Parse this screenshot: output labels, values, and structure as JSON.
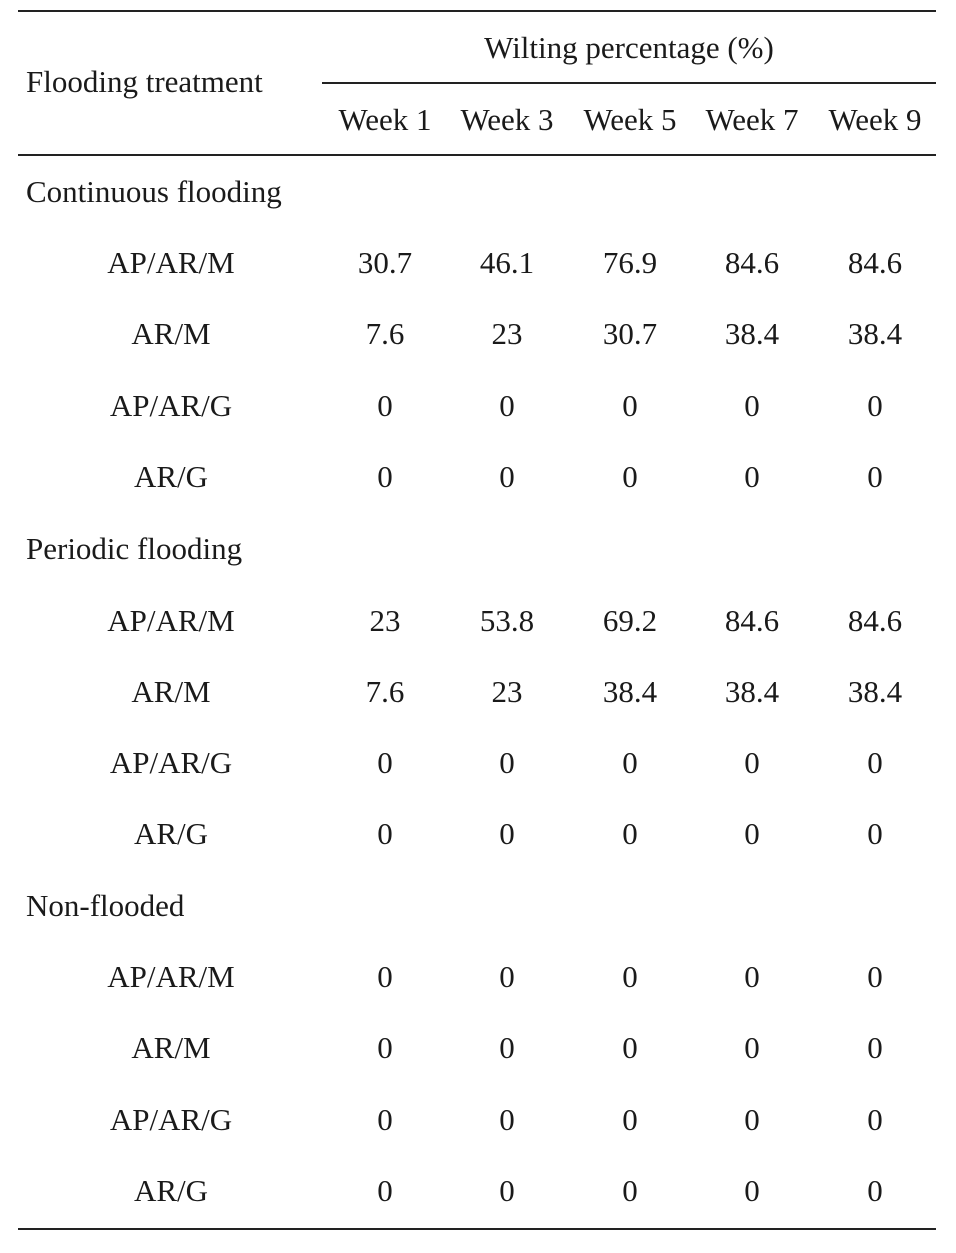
{
  "table": {
    "row_header": "Flooding treatment",
    "group_header": "Wilting percentage (%)",
    "columns": [
      "Week 1",
      "Week 3",
      "Week 5",
      "Week 7",
      "Week 9"
    ],
    "sections": [
      {
        "title": "Continuous flooding",
        "rows": [
          {
            "label": "AP/AR/M",
            "values": [
              "30.7",
              "46.1",
              "76.9",
              "84.6",
              "84.6"
            ]
          },
          {
            "label": "AR/M",
            "values": [
              "7.6",
              "23",
              "30.7",
              "38.4",
              "38.4"
            ]
          },
          {
            "label": "AP/AR/G",
            "values": [
              "0",
              "0",
              "0",
              "0",
              "0"
            ]
          },
          {
            "label": "AR/G",
            "values": [
              "0",
              "0",
              "0",
              "0",
              "0"
            ]
          }
        ]
      },
      {
        "title": "Periodic flooding",
        "rows": [
          {
            "label": "AP/AR/M",
            "values": [
              "23",
              "53.8",
              "69.2",
              "84.6",
              "84.6"
            ]
          },
          {
            "label": "AR/M",
            "values": [
              "7.6",
              "23",
              "38.4",
              "38.4",
              "38.4"
            ]
          },
          {
            "label": "AP/AR/G",
            "values": [
              "0",
              "0",
              "0",
              "0",
              "0"
            ]
          },
          {
            "label": "AR/G",
            "values": [
              "0",
              "0",
              "0",
              "0",
              "0"
            ]
          }
        ]
      },
      {
        "title": "Non-flooded",
        "rows": [
          {
            "label": "AP/AR/M",
            "values": [
              "0",
              "0",
              "0",
              "0",
              "0"
            ]
          },
          {
            "label": "AR/M",
            "values": [
              "0",
              "0",
              "0",
              "0",
              "0"
            ]
          },
          {
            "label": "AP/AR/G",
            "values": [
              "0",
              "0",
              "0",
              "0",
              "0"
            ]
          },
          {
            "label": "AR/G",
            "values": [
              "0",
              "0",
              "0",
              "0",
              "0"
            ]
          }
        ]
      }
    ]
  }
}
